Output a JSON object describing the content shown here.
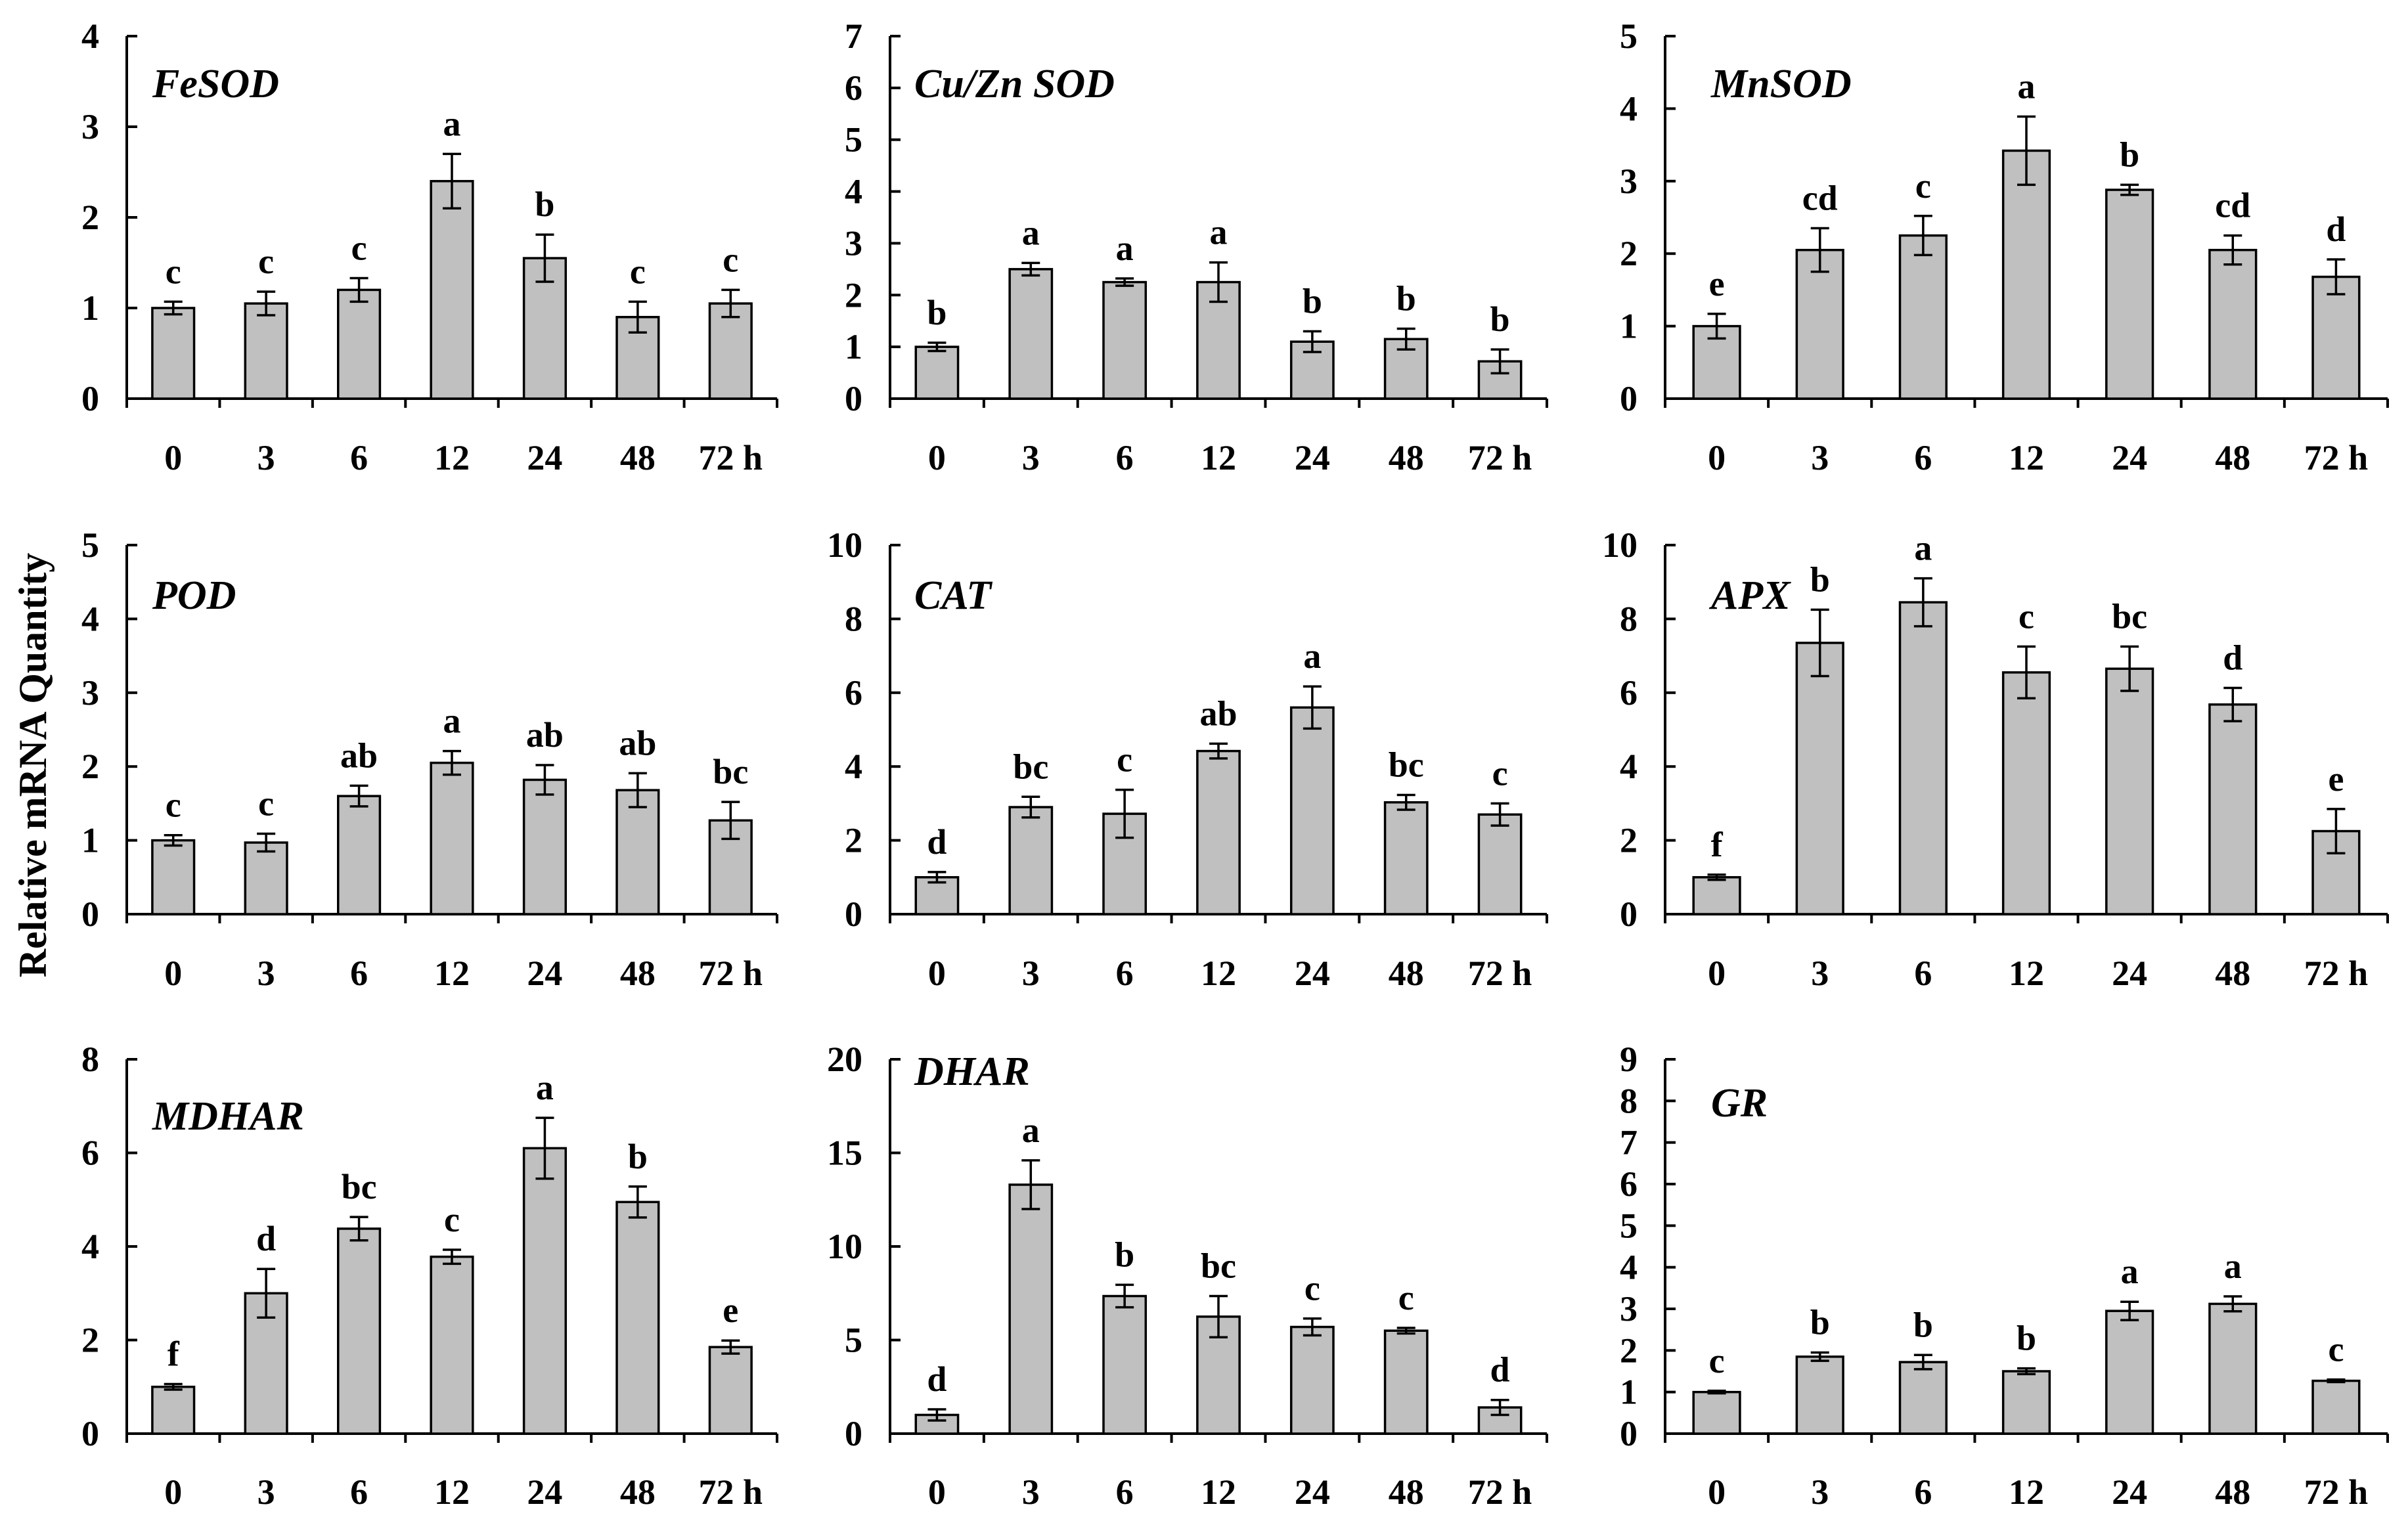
{
  "figure": {
    "ylabel": "Relative mRNA Quantity",
    "bar_color": "#c0c0c0",
    "axis_color": "#000000"
  },
  "chart_data": [
    {
      "type": "bar",
      "title": "FeSOD",
      "categories": [
        "0",
        "3",
        "6",
        "12",
        "24",
        "48",
        "72 h"
      ],
      "series": [
        {
          "name": "FeSOD",
          "values": [
            1.0,
            1.05,
            1.2,
            2.4,
            1.55,
            0.9,
            1.05
          ],
          "errors": [
            0.07,
            0.13,
            0.13,
            0.3,
            0.26,
            0.17,
            0.15
          ]
        }
      ],
      "letters": [
        "c",
        "c",
        "c",
        "a",
        "b",
        "c",
        "c"
      ],
      "ylim": [
        0,
        4
      ],
      "yticks": [
        0,
        1,
        2,
        3,
        4
      ],
      "xlabel": "",
      "ylabel": "Relative mRNA Quantity"
    },
    {
      "type": "bar",
      "title": "Cu/Zn SOD",
      "categories": [
        "0",
        "3",
        "6",
        "12",
        "24",
        "48",
        "72 h"
      ],
      "series": [
        {
          "name": "Cu/Zn SOD",
          "values": [
            1.0,
            2.5,
            2.25,
            2.25,
            1.1,
            1.15,
            0.72
          ],
          "errors": [
            0.08,
            0.12,
            0.07,
            0.38,
            0.2,
            0.2,
            0.23
          ]
        }
      ],
      "letters": [
        "b",
        "a",
        "a",
        "a",
        "b",
        "b",
        "b"
      ],
      "ylim": [
        0,
        7
      ],
      "yticks": [
        0,
        1,
        2,
        3,
        4,
        5,
        6,
        7
      ],
      "xlabel": "",
      "ylabel": "Relative mRNA Quantity"
    },
    {
      "type": "bar",
      "title": "MnSOD",
      "categories": [
        "0",
        "3",
        "6",
        "12",
        "24",
        "48",
        "72 h"
      ],
      "series": [
        {
          "name": "MnSOD",
          "values": [
            1.0,
            2.05,
            2.25,
            3.42,
            2.88,
            2.05,
            1.68
          ],
          "errors": [
            0.17,
            0.3,
            0.27,
            0.47,
            0.07,
            0.2,
            0.24
          ]
        }
      ],
      "letters": [
        "e",
        "cd",
        "c",
        "a",
        "b",
        "cd",
        "d"
      ],
      "ylim": [
        0,
        5
      ],
      "yticks": [
        0,
        1,
        2,
        3,
        4,
        5
      ],
      "xlabel": "",
      "ylabel": "Relative mRNA Quantity"
    },
    {
      "type": "bar",
      "title": "POD",
      "categories": [
        "0",
        "3",
        "6",
        "12",
        "24",
        "48",
        "72 h"
      ],
      "series": [
        {
          "name": "POD",
          "values": [
            1.0,
            0.97,
            1.6,
            2.05,
            1.82,
            1.68,
            1.27
          ],
          "errors": [
            0.07,
            0.12,
            0.14,
            0.16,
            0.2,
            0.23,
            0.25
          ]
        }
      ],
      "letters": [
        "c",
        "c",
        "ab",
        "a",
        "ab",
        "ab",
        "bc"
      ],
      "ylim": [
        0,
        5
      ],
      "yticks": [
        0,
        1,
        2,
        3,
        4,
        5
      ],
      "xlabel": "",
      "ylabel": "Relative mRNA Quantity"
    },
    {
      "type": "bar",
      "title": "CAT",
      "categories": [
        "0",
        "3",
        "6",
        "12",
        "24",
        "48",
        "72 h"
      ],
      "series": [
        {
          "name": "CAT",
          "values": [
            1.0,
            2.9,
            2.72,
            4.42,
            5.6,
            3.03,
            2.7
          ],
          "errors": [
            0.14,
            0.28,
            0.65,
            0.2,
            0.57,
            0.2,
            0.3
          ]
        }
      ],
      "letters": [
        "d",
        "bc",
        "c",
        "ab",
        "a",
        "bc",
        "c"
      ],
      "ylim": [
        0,
        10
      ],
      "yticks": [
        0,
        2,
        4,
        6,
        8,
        10
      ],
      "xlabel": "",
      "ylabel": "Relative mRNA Quantity"
    },
    {
      "type": "bar",
      "title": "APX",
      "categories": [
        "0",
        "3",
        "6",
        "12",
        "24",
        "48",
        "72 h"
      ],
      "series": [
        {
          "name": "APX",
          "values": [
            1.0,
            7.35,
            8.45,
            6.55,
            6.65,
            5.68,
            2.25
          ],
          "errors": [
            0.07,
            0.9,
            0.65,
            0.7,
            0.6,
            0.45,
            0.6
          ]
        }
      ],
      "letters": [
        "f",
        "b",
        "a",
        "c",
        "bc",
        "d",
        "e"
      ],
      "ylim": [
        0,
        10
      ],
      "yticks": [
        0,
        2,
        4,
        6,
        8,
        10
      ],
      "xlabel": "",
      "ylabel": "Relative mRNA Quantity"
    },
    {
      "type": "bar",
      "title": "MDHAR",
      "categories": [
        "0",
        "3",
        "6",
        "12",
        "24",
        "48",
        "72 h"
      ],
      "series": [
        {
          "name": "MDHAR",
          "values": [
            1.0,
            3.0,
            4.38,
            3.78,
            6.1,
            4.95,
            1.85
          ],
          "errors": [
            0.06,
            0.52,
            0.25,
            0.15,
            0.65,
            0.33,
            0.14
          ]
        }
      ],
      "letters": [
        "f",
        "d",
        "bc",
        "c",
        "a",
        "b",
        "e"
      ],
      "ylim": [
        0,
        8
      ],
      "yticks": [
        0,
        2,
        4,
        6,
        8
      ],
      "xlabel": "",
      "ylabel": "Relative mRNA Quantity"
    },
    {
      "type": "bar",
      "title": "DHAR",
      "categories": [
        "0",
        "3",
        "6",
        "12",
        "24",
        "48",
        "72 h"
      ],
      "series": [
        {
          "name": "DHAR",
          "values": [
            1.0,
            13.3,
            7.35,
            6.25,
            5.7,
            5.5,
            1.4
          ],
          "errors": [
            0.3,
            1.3,
            0.6,
            1.1,
            0.45,
            0.15,
            0.4
          ]
        }
      ],
      "letters": [
        "d",
        "a",
        "b",
        "bc",
        "c",
        "c",
        "d"
      ],
      "ylim": [
        0,
        20
      ],
      "yticks": [
        0,
        5,
        10,
        15,
        20
      ],
      "xlabel": "",
      "ylabel": "Relative mRNA Quantity"
    },
    {
      "type": "bar",
      "title": "GR",
      "categories": [
        "0",
        "3",
        "6",
        "12",
        "24",
        "48",
        "72 h"
      ],
      "series": [
        {
          "name": "GR",
          "values": [
            1.0,
            1.85,
            1.72,
            1.5,
            2.95,
            3.12,
            1.27
          ],
          "errors": [
            0.03,
            0.1,
            0.17,
            0.07,
            0.22,
            0.18,
            0.03
          ]
        }
      ],
      "letters": [
        "c",
        "b",
        "b",
        "b",
        "a",
        "a",
        "c"
      ],
      "ylim": [
        0,
        9
      ],
      "yticks": [
        0,
        1,
        2,
        3,
        4,
        5,
        6,
        7,
        8,
        9
      ],
      "xlabel": "",
      "ylabel": "Relative mRNA Quantity"
    }
  ]
}
